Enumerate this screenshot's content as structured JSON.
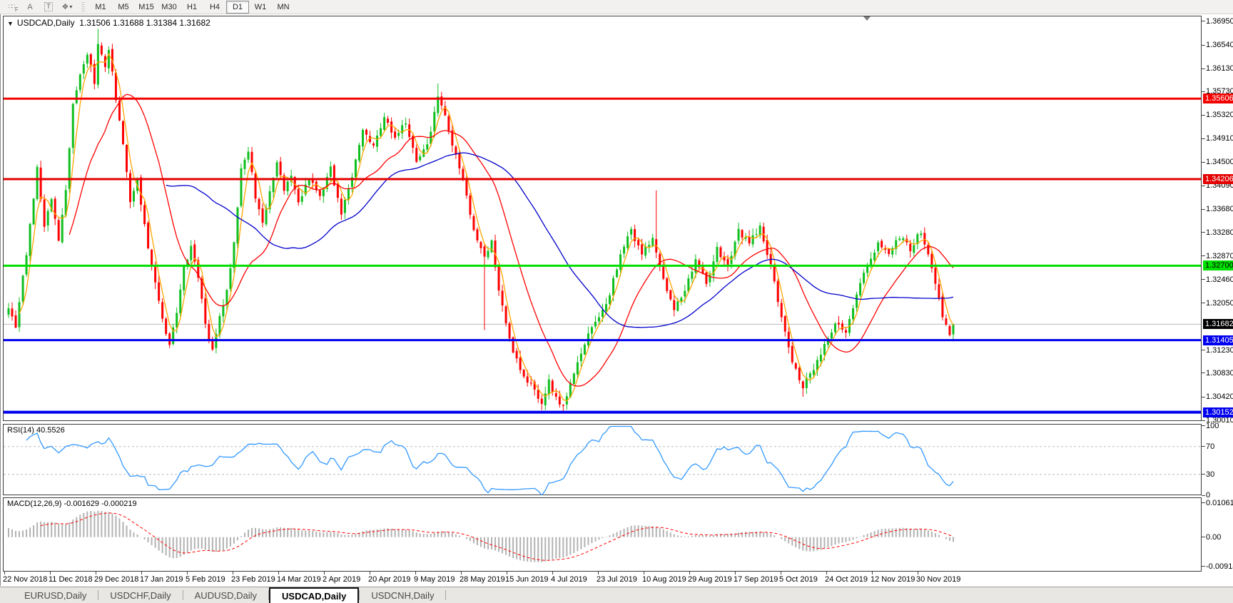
{
  "toolbar": {
    "tool_icons": [
      "grid-f-icon",
      "arrow-a-icon",
      "text-t-icon",
      "cursor-diamond-icon",
      "caret-down-icon"
    ],
    "tool_labels": {
      "grid_f": "F",
      "arrow": "A",
      "text": "T",
      "cursor": "❖",
      "caret": "▾"
    },
    "timeframes": [
      "M1",
      "M5",
      "M15",
      "M30",
      "H1",
      "H4",
      "D1",
      "W1",
      "MN"
    ],
    "active_timeframe": "D1"
  },
  "chart": {
    "title_symbol": "USDCAD,Daily",
    "title_ohlc": "1.31506 1.31688 1.31384 1.31682",
    "dropdown_glyph": "▼"
  },
  "chart_data": {
    "type": "candlestick",
    "symbol": "USDCAD",
    "timeframe": "Daily",
    "last_ohlc": {
      "open": 1.31506,
      "high": 1.31688,
      "low": 1.31384,
      "close": 1.31682
    },
    "num_candles": 265,
    "y_axis": {
      "min": 1.29998,
      "max": 1.37049,
      "ticks": [
        "1.36950",
        "1.36540",
        "1.36130",
        "1.35730",
        "1.35320",
        "1.34910",
        "1.34500",
        "1.34090",
        "1.33680",
        "1.33280",
        "1.32870",
        "1.32460",
        "1.32050",
        "1.31230",
        "1.30830",
        "1.30420",
        "1.30010"
      ]
    },
    "x_labels": [
      "22 Nov 2018",
      "11 Dec 2018",
      "29 Dec 2018",
      "17 Jan 2019",
      "5 Feb 2019",
      "23 Feb 2019",
      "14 Mar 2019",
      "2 Apr 2019",
      "20 Apr 2019",
      "9 May 2019",
      "28 May 2019",
      "15 Jun 2019",
      "4 Jul 2019",
      "23 Jul 2019",
      "10 Aug 2019",
      "29 Aug 2019",
      "17 Sep 2019",
      "5 Oct 2019",
      "24 Oct 2019",
      "12 Nov 2019",
      "30 Nov 2019"
    ],
    "colors": {
      "bull": "#0fbf1e",
      "bear": "#ff0000",
      "ma_fast": "#ffa500",
      "ma_mid": "#ff0000",
      "ma_slow": "#0000cc",
      "bid_line": "#b8b8b8",
      "bid_chip": "#000000",
      "grid": "#c8c8c8"
    },
    "close_anchors": [
      [
        0,
        1.32
      ],
      [
        2,
        1.3165
      ],
      [
        5,
        1.329
      ],
      [
        8,
        1.344
      ],
      [
        10,
        1.334
      ],
      [
        12,
        1.339
      ],
      [
        14,
        1.331
      ],
      [
        16,
        1.34
      ],
      [
        18,
        1.355
      ],
      [
        20,
        1.36
      ],
      [
        22,
        1.364
      ],
      [
        24,
        1.359
      ],
      [
        25,
        1.366
      ],
      [
        27,
        1.362
      ],
      [
        28,
        1.365
      ],
      [
        30,
        1.356
      ],
      [
        32,
        1.348
      ],
      [
        34,
        1.338
      ],
      [
        36,
        1.342
      ],
      [
        38,
        1.334
      ],
      [
        40,
        1.327
      ],
      [
        43,
        1.318
      ],
      [
        45,
        1.313
      ],
      [
        47,
        1.319
      ],
      [
        49,
        1.327
      ],
      [
        51,
        1.33
      ],
      [
        53,
        1.325
      ],
      [
        55,
        1.317
      ],
      [
        57,
        1.312
      ],
      [
        59,
        1.318
      ],
      [
        61,
        1.323
      ],
      [
        63,
        1.331
      ],
      [
        65,
        1.344
      ],
      [
        67,
        1.347
      ],
      [
        69,
        1.339
      ],
      [
        71,
        1.334
      ],
      [
        73,
        1.34
      ],
      [
        75,
        1.345
      ],
      [
        77,
        1.34
      ],
      [
        79,
        1.343
      ],
      [
        81,
        1.338
      ],
      [
        84,
        1.342
      ],
      [
        87,
        1.339
      ],
      [
        90,
        1.344
      ],
      [
        93,
        1.336
      ],
      [
        96,
        1.342
      ],
      [
        99,
        1.351
      ],
      [
        102,
        1.348
      ],
      [
        105,
        1.353
      ],
      [
        108,
        1.349
      ],
      [
        111,
        1.352
      ],
      [
        114,
        1.345
      ],
      [
        117,
        1.348
      ],
      [
        120,
        1.356
      ],
      [
        122,
        1.353
      ],
      [
        124,
        1.348
      ],
      [
        127,
        1.342
      ],
      [
        130,
        1.333
      ],
      [
        133,
        1.329
      ],
      [
        135,
        1.331
      ],
      [
        137,
        1.323
      ],
      [
        140,
        1.314
      ],
      [
        143,
        1.309
      ],
      [
        146,
        1.306
      ],
      [
        149,
        1.303
      ],
      [
        151,
        1.307
      ],
      [
        153,
        1.304
      ],
      [
        155,
        1.3025
      ],
      [
        157,
        1.307
      ],
      [
        159,
        1.31
      ],
      [
        162,
        1.315
      ],
      [
        165,
        1.318
      ],
      [
        168,
        1.322
      ],
      [
        171,
        1.329
      ],
      [
        174,
        1.333
      ],
      [
        177,
        1.329
      ],
      [
        180,
        1.332
      ],
      [
        183,
        1.325
      ],
      [
        186,
        1.319
      ],
      [
        189,
        1.323
      ],
      [
        192,
        1.328
      ],
      [
        195,
        1.324
      ],
      [
        198,
        1.33
      ],
      [
        201,
        1.327
      ],
      [
        204,
        1.333
      ],
      [
        207,
        1.331
      ],
      [
        210,
        1.334
      ],
      [
        213,
        1.327
      ],
      [
        216,
        1.318
      ],
      [
        219,
        1.31
      ],
      [
        222,
        1.306
      ],
      [
        225,
        1.309
      ],
      [
        228,
        1.313
      ],
      [
        231,
        1.317
      ],
      [
        234,
        1.315
      ],
      [
        237,
        1.322
      ],
      [
        240,
        1.327
      ],
      [
        243,
        1.331
      ],
      [
        246,
        1.329
      ],
      [
        249,
        1.332
      ],
      [
        252,
        1.33
      ],
      [
        255,
        1.333
      ],
      [
        257,
        1.329
      ],
      [
        259,
        1.324
      ],
      [
        261,
        1.318
      ],
      [
        263,
        1.315
      ],
      [
        264,
        1.31682
      ]
    ],
    "overrides": [
      {
        "i": 25,
        "h": 1.3682
      },
      {
        "i": 120,
        "h": 1.3587
      },
      {
        "i": 133,
        "l": 1.3158
      },
      {
        "i": 149,
        "l": 1.3019
      },
      {
        "i": 155,
        "l": 1.3016
      },
      {
        "i": 181,
        "h": 1.3401
      },
      {
        "i": 222,
        "l": 1.3042
      },
      {
        "i": 264,
        "o": 1.31506,
        "h": 1.31688,
        "l": 1.31384,
        "c": 1.31682
      }
    ],
    "moving_averages": [
      {
        "name": "ma-fast",
        "period": 4,
        "color": "#ffa500"
      },
      {
        "name": "ma-mid",
        "period": 18,
        "color": "#ff0000"
      },
      {
        "name": "ma-slow",
        "period": 45,
        "color": "#0000cc"
      }
    ],
    "hlines": [
      {
        "price": 1.35606,
        "label": "1.35606",
        "color": "#f40000",
        "chip": "#f40000",
        "text": "#ffffff",
        "width": 3
      },
      {
        "price": 1.34206,
        "label": "1.34206",
        "color": "#e40000",
        "chip": "#e40000",
        "text": "#ffffff",
        "width": 3
      },
      {
        "price": 1.327,
        "label": "1.32700",
        "color": "#00df00",
        "chip": "#00df00",
        "text": "#000000",
        "width": 3
      },
      {
        "price": 1.31405,
        "label": "1.31405",
        "color": "#0000ee",
        "chip": "#0000ee",
        "text": "#ffffff",
        "width": 3
      },
      {
        "price": 1.30152,
        "label": "1.30152",
        "color": "#0000ee",
        "chip": "#0000ee",
        "text": "#ffffff",
        "width": 4
      }
    ],
    "bid": {
      "price": 1.31682,
      "label": "1.31682"
    },
    "indicators": [
      {
        "name": "rsi",
        "label": "RSI(14)",
        "value": "40.5526",
        "color": "#3399ff",
        "levels": [
          70,
          30
        ],
        "range": [
          0,
          100
        ],
        "axis_ticks": [
          {
            "label": "100",
            "v": 100
          },
          {
            "label": "70",
            "v": 70
          },
          {
            "label": "30",
            "v": 30
          },
          {
            "label": "0",
            "v": 0
          }
        ]
      },
      {
        "name": "macd",
        "label": "MACD(12,26,9)",
        "values": "-0.001629 -0.000219",
        "histogram_color": "#b2b2b2",
        "signal_color": "#ff0000",
        "range": [
          -0.009181,
          0.010615
        ],
        "axis_ticks": [
          {
            "label": "0.010615",
            "v": 0.010615
          },
          {
            "label": "0.00",
            "v": 0
          },
          {
            "label": "-0.009181",
            "v": -0.009181
          }
        ]
      }
    ]
  },
  "tabs": {
    "items": [
      "EURUSD,Daily",
      "USDCHF,Daily",
      "AUDUSD,Daily",
      "USDCAD,Daily",
      "USDCNH,Daily"
    ],
    "active": "USDCAD,Daily"
  }
}
